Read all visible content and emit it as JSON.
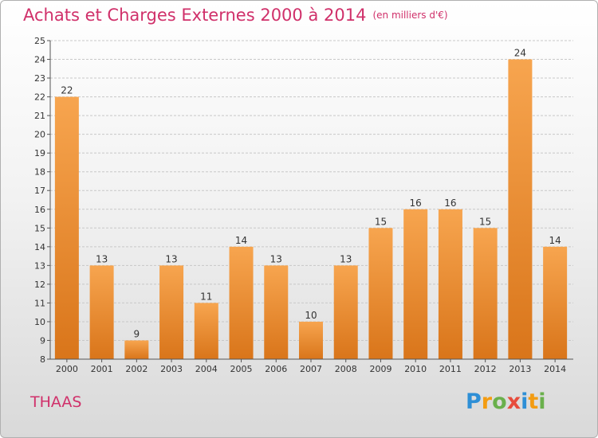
{
  "title": "Achats et Charges Externes 2000 à 2014",
  "unit": "(en milliers d'€)",
  "commune": "THAAS",
  "logo": {
    "letters": [
      "P",
      "r",
      "o",
      "x",
      "i",
      "t",
      "i"
    ],
    "colors": [
      "#2e8fd6",
      "#f39c12",
      "#6ab04c",
      "#e74c3c",
      "#2e8fd6",
      "#f39c12",
      "#6ab04c"
    ]
  },
  "colors": {
    "title": "#d0306a",
    "bar_top": "#f7a54f",
    "bar_bottom": "#d9751a"
  },
  "chart_data": {
    "type": "bar",
    "title": "Achats et Charges Externes 2000 à 2014",
    "subtitle": "(en milliers d'€)",
    "categories": [
      "2000",
      "2001",
      "2002",
      "2003",
      "2004",
      "2005",
      "2006",
      "2007",
      "2008",
      "2009",
      "2010",
      "2011",
      "2012",
      "2013",
      "2014"
    ],
    "values": [
      22,
      13,
      9,
      13,
      11,
      14,
      13,
      10,
      13,
      15,
      16,
      16,
      15,
      24,
      14
    ],
    "ylim": [
      8,
      25
    ],
    "yticks": [
      8,
      9,
      10,
      11,
      12,
      13,
      14,
      15,
      16,
      17,
      18,
      19,
      20,
      21,
      22,
      23,
      24,
      25
    ],
    "grid": true,
    "xlabel": "",
    "ylabel": ""
  }
}
